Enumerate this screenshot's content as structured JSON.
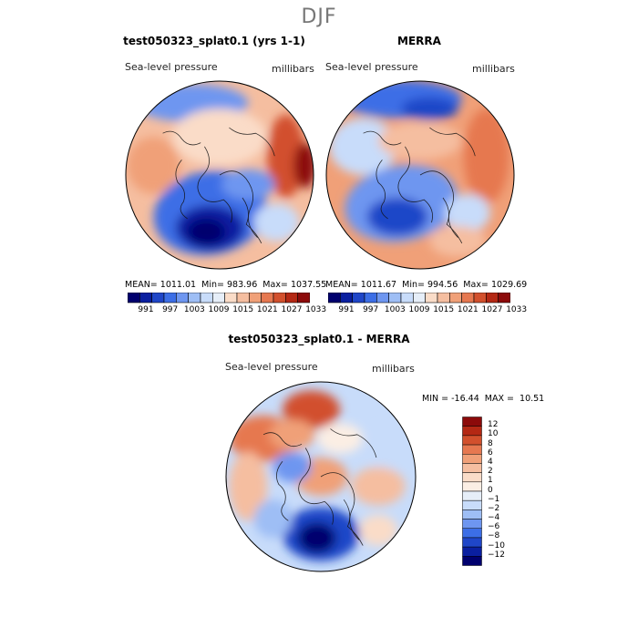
{
  "figure": {
    "season": "DJF"
  },
  "chart_data": [
    {
      "type": "heatmap",
      "title": "test050323_splat0.1 (yrs 1-1)",
      "variable": "Sea-level pressure",
      "units": "millibars",
      "projection": "north polar stereographic",
      "stats": {
        "mean_label": "MEAN=",
        "mean": "1011.01",
        "min_label": "Min=",
        "min": "983.96",
        "max_label": "Max=",
        "max": "1037.55"
      },
      "colorbar": {
        "orientation": "horizontal",
        "levels": [
          991,
          997,
          1003,
          1009,
          1015,
          1021,
          1027,
          1033
        ],
        "colors": [
          "#00006e",
          "#0a1fa0",
          "#1f46c8",
          "#3c6ee6",
          "#6e96f0",
          "#9ebef5",
          "#c8dcfa",
          "#e6eef8",
          "#fadcc8",
          "#f5bea0",
          "#f0a078",
          "#e67850",
          "#d2502d",
          "#b42814",
          "#8c0a0a"
        ]
      }
    },
    {
      "type": "heatmap",
      "title": "MERRA",
      "variable": "Sea-level pressure",
      "units": "millibars",
      "projection": "north polar stereographic",
      "stats": {
        "mean_label": "MEAN=",
        "mean": "1011.67",
        "min_label": "Min=",
        "min": "994.56",
        "max_label": "Max=",
        "max": "1029.69"
      },
      "colorbar": {
        "orientation": "horizontal",
        "levels": [
          991,
          997,
          1003,
          1009,
          1015,
          1021,
          1027,
          1033
        ],
        "colors": [
          "#00006e",
          "#0a1fa0",
          "#1f46c8",
          "#3c6ee6",
          "#6e96f0",
          "#9ebef5",
          "#c8dcfa",
          "#e6eef8",
          "#fadcc8",
          "#f5bea0",
          "#f0a078",
          "#e67850",
          "#d2502d",
          "#b42814",
          "#8c0a0a"
        ]
      }
    },
    {
      "type": "heatmap",
      "title": "test050323_splat0.1 - MERRA",
      "variable": "Sea-level pressure",
      "units": "millibars",
      "projection": "north polar stereographic",
      "stats": {
        "min_label": "MIN =",
        "min": "-16.44",
        "max_label": "MAX =",
        "max": "10.51"
      },
      "colorbar": {
        "orientation": "vertical",
        "levels": [
          "12",
          "10",
          "8",
          "6",
          "4",
          "2",
          "1",
          "0",
          "−1",
          "−2",
          "−4",
          "−6",
          "−8",
          "−10",
          "−12"
        ],
        "colors": [
          "#8c0a0a",
          "#b42814",
          "#d2502d",
          "#e67850",
          "#f0a078",
          "#f5bea0",
          "#fadcc8",
          "#fbeee4",
          "#e6eef8",
          "#c8dcfa",
          "#9ebef5",
          "#6e96f0",
          "#3c6ee6",
          "#1f46c8",
          "#0a1fa0",
          "#00006e"
        ]
      }
    }
  ]
}
